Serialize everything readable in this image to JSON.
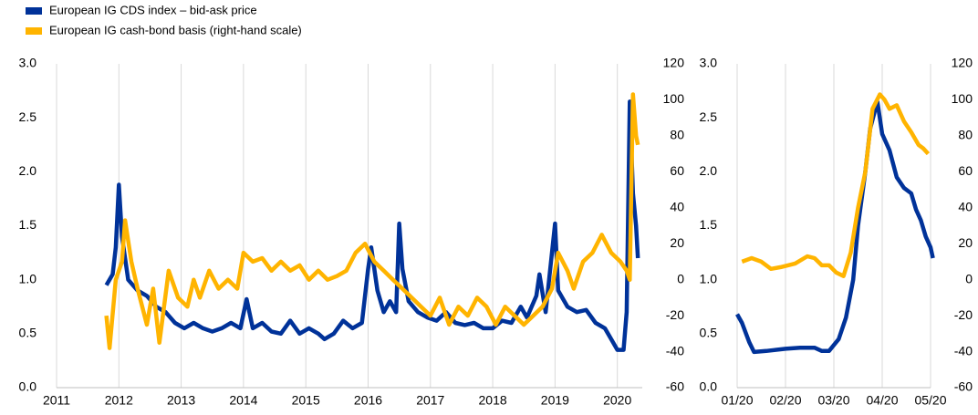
{
  "chart_data": [
    {
      "type": "line",
      "xlim": [
        2011,
        2020.4
      ],
      "xticks": [
        2011,
        2012,
        2013,
        2014,
        2015,
        2016,
        2017,
        2018,
        2019,
        2020
      ],
      "ylim": [
        0,
        3
      ],
      "yticks": [
        {
          "value": 0,
          "label": "0.0"
        },
        0.5,
        {
          "value": 1,
          "label": "1.0"
        },
        1.5,
        {
          "value": 2,
          "label": "2.0"
        },
        2.5,
        {
          "value": 3,
          "label": "3.0"
        }
      ],
      "y2lim": [
        -60,
        120
      ],
      "y2ticks": [
        -60,
        -40,
        -20,
        0,
        20,
        40,
        60,
        80,
        100,
        120
      ],
      "grid": true,
      "series": [
        {
          "name": "European IG CDS index – bid-ask price",
          "color": "#003299",
          "x": [
            2011.8,
            2011.9,
            2011.95,
            2012.0,
            2012.05,
            2012.15,
            2012.3,
            2012.45,
            2012.6,
            2012.75,
            2012.9,
            2013.05,
            2013.2,
            2013.35,
            2013.5,
            2013.65,
            2013.8,
            2013.95,
            2014.05,
            2014.15,
            2014.3,
            2014.45,
            2014.6,
            2014.75,
            2014.9,
            2015.05,
            2015.2,
            2015.3,
            2015.45,
            2015.6,
            2015.75,
            2015.9,
            2016.0,
            2016.05,
            2016.15,
            2016.25,
            2016.35,
            2016.45,
            2016.5,
            2016.55,
            2016.65,
            2016.8,
            2016.95,
            2017.1,
            2017.25,
            2017.4,
            2017.55,
            2017.7,
            2017.85,
            2018.0,
            2018.15,
            2018.3,
            2018.45,
            2018.55,
            2018.7,
            2018.75,
            2018.85,
            2019.0,
            2019.05,
            2019.2,
            2019.35,
            2019.5,
            2019.65,
            2019.8,
            2019.9,
            2020.0,
            2020.1,
            2020.15,
            2020.2,
            2020.25,
            2020.3,
            2020.33
          ],
          "values": [
            0.95,
            1.05,
            1.3,
            1.88,
            1.4,
            1.0,
            0.9,
            0.85,
            0.75,
            0.7,
            0.6,
            0.55,
            0.6,
            0.55,
            0.52,
            0.55,
            0.6,
            0.55,
            0.82,
            0.55,
            0.6,
            0.52,
            0.5,
            0.62,
            0.5,
            0.55,
            0.5,
            0.45,
            0.5,
            0.62,
            0.55,
            0.6,
            1.1,
            1.3,
            0.9,
            0.7,
            0.8,
            0.7,
            1.52,
            1.1,
            0.8,
            0.7,
            0.65,
            0.62,
            0.7,
            0.6,
            0.58,
            0.6,
            0.55,
            0.55,
            0.62,
            0.6,
            0.75,
            0.65,
            0.85,
            1.05,
            0.7,
            1.52,
            0.9,
            0.75,
            0.7,
            0.72,
            0.6,
            0.55,
            0.45,
            0.35,
            0.35,
            0.7,
            2.65,
            1.8,
            1.5,
            1.2
          ]
        },
        {
          "name": "European IG cash-bond basis (right-hand scale)",
          "color": "#ffb400",
          "axis": "y2",
          "x": [
            2011.8,
            2011.85,
            2011.95,
            2012.05,
            2012.1,
            2012.2,
            2012.3,
            2012.45,
            2012.55,
            2012.65,
            2012.8,
            2012.95,
            2013.1,
            2013.2,
            2013.3,
            2013.45,
            2013.6,
            2013.75,
            2013.9,
            2014.0,
            2014.15,
            2014.3,
            2014.45,
            2014.6,
            2014.75,
            2014.9,
            2015.05,
            2015.2,
            2015.35,
            2015.5,
            2015.65,
            2015.8,
            2015.95,
            2016.1,
            2016.25,
            2016.4,
            2016.55,
            2016.7,
            2016.85,
            2017.0,
            2017.15,
            2017.3,
            2017.45,
            2017.6,
            2017.75,
            2017.9,
            2018.05,
            2018.2,
            2018.35,
            2018.5,
            2018.65,
            2018.8,
            2018.95,
            2019.05,
            2019.2,
            2019.3,
            2019.45,
            2019.6,
            2019.75,
            2019.9,
            2020.05,
            2020.15,
            2020.2,
            2020.25,
            2020.3,
            2020.33
          ],
          "values": [
            -20,
            -38,
            0,
            10,
            33,
            10,
            -5,
            -25,
            -5,
            -35,
            5,
            -10,
            -15,
            0,
            -10,
            5,
            -5,
            0,
            -5,
            15,
            10,
            12,
            5,
            10,
            5,
            8,
            0,
            5,
            0,
            2,
            5,
            15,
            20,
            10,
            5,
            0,
            -5,
            -10,
            -15,
            -20,
            -10,
            -25,
            -15,
            -20,
            -10,
            -15,
            -25,
            -15,
            -20,
            -25,
            -20,
            -15,
            -5,
            15,
            5,
            -5,
            10,
            15,
            25,
            15,
            10,
            5,
            0,
            103,
            80,
            75
          ]
        }
      ]
    },
    {
      "type": "line",
      "xlim": [
        0,
        4
      ],
      "xticks": [
        {
          "value": 0,
          "label": "01/20"
        },
        {
          "value": 1,
          "label": "02/20"
        },
        {
          "value": 2,
          "label": "03/20"
        },
        {
          "value": 3,
          "label": "04/20"
        },
        {
          "value": 4,
          "label": "05/20"
        }
      ],
      "ylim": [
        0,
        3
      ],
      "yticks": [
        {
          "value": 0,
          "label": "0.0"
        },
        0.5,
        {
          "value": 1,
          "label": "1.0"
        },
        1.5,
        {
          "value": 2,
          "label": "2.0"
        },
        2.5,
        {
          "value": 3,
          "label": "3.0"
        }
      ],
      "y2lim": [
        -60,
        120
      ],
      "y2ticks": [
        -60,
        -40,
        -20,
        0,
        20,
        40,
        60,
        80,
        100,
        120
      ],
      "grid": true,
      "series": [
        {
          "color": "#003299",
          "x": [
            0,
            0.1,
            0.25,
            0.35,
            0.6,
            1.0,
            1.3,
            1.6,
            1.75,
            1.9,
            2.1,
            2.25,
            2.4,
            2.5,
            2.65,
            2.75,
            2.9,
            3.0,
            3.15,
            3.3,
            3.45,
            3.6,
            3.7,
            3.8,
            3.9,
            4.0,
            4.05
          ],
          "values": [
            0.68,
            0.6,
            0.42,
            0.33,
            0.34,
            0.36,
            0.37,
            0.37,
            0.34,
            0.34,
            0.45,
            0.65,
            1.0,
            1.5,
            2.0,
            2.4,
            2.65,
            2.35,
            2.2,
            1.95,
            1.85,
            1.8,
            1.65,
            1.55,
            1.4,
            1.3,
            1.2
          ]
        },
        {
          "color": "#ffb400",
          "axis": "y2",
          "x": [
            0.1,
            0.3,
            0.5,
            0.7,
            0.9,
            1.2,
            1.45,
            1.6,
            1.75,
            1.9,
            2.05,
            2.2,
            2.35,
            2.5,
            2.65,
            2.8,
            2.95,
            3.05,
            3.15,
            3.3,
            3.45,
            3.6,
            3.75,
            3.85,
            3.95
          ],
          "values": [
            10,
            12,
            10,
            6,
            7,
            9,
            13,
            12,
            8,
            8,
            4,
            2,
            15,
            40,
            60,
            95,
            103,
            100,
            95,
            97,
            88,
            82,
            75,
            73,
            70
          ]
        }
      ]
    }
  ]
}
